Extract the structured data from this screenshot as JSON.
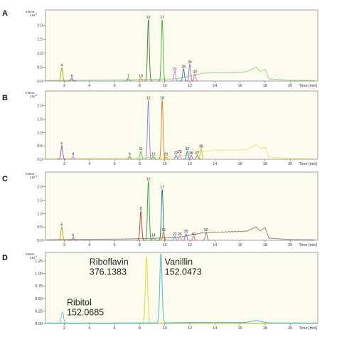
{
  "chart_data": [
    {
      "panel": "A",
      "type": "line",
      "ylabel": "Intens.",
      "yexp": "x10",
      "yexp_sup": "5",
      "xlabel": "Time [min]",
      "xlim": [
        0.5,
        22.2
      ],
      "ylim": [
        0,
        2.55
      ],
      "xticks": [
        "2",
        "4",
        "6",
        "8",
        "10",
        "12",
        "14",
        "16",
        "18",
        "20"
      ],
      "xtick_values": [
        2,
        4,
        6,
        8,
        10,
        12,
        14,
        16,
        18,
        20
      ],
      "yticks": [
        "0.0",
        "0.5",
        "1.0",
        "1.5",
        "2.0"
      ],
      "ytick_values": [
        0,
        0.5,
        1.0,
        1.5,
        2.0
      ],
      "peaks": [
        {
          "label": "4",
          "x": 1.8,
          "y": 0.48,
          "color": "#9aaa00"
        },
        {
          "label": "6",
          "x": 2.6,
          "y": 0.1,
          "color": "#7e4ea8"
        },
        {
          "label": "7",
          "x": 7.1,
          "y": 0.1,
          "color": "#5aa050"
        },
        {
          "label": "10",
          "x": 8.1,
          "y": 0.1,
          "color": "#e59a28"
        },
        {
          "label": "12",
          "x": 8.7,
          "y": 2.2,
          "color": "#3a7d3a"
        },
        {
          "label": "17",
          "x": 9.8,
          "y": 2.2,
          "color": "#3fb02e"
        },
        {
          "label": "22",
          "x": 10.8,
          "y": 0.35,
          "color": "#c27ad6"
        },
        {
          "label": "28",
          "x": 11.5,
          "y": 0.43,
          "color": "#1f77b4"
        },
        {
          "label": "34",
          "x": 12.0,
          "y": 0.6,
          "color": "#9f5fd0"
        },
        {
          "label": "40",
          "x": 12.4,
          "y": 0.25,
          "color": "#ea5e8a"
        }
      ],
      "baseline": [
        [
          0.6,
          0.02
        ],
        [
          2,
          0.03
        ],
        [
          6,
          0.04
        ],
        [
          11,
          0.08
        ],
        [
          13,
          0.28
        ],
        [
          14,
          0.3
        ],
        [
          15,
          0.3
        ],
        [
          16.5,
          0.33
        ],
        [
          17.3,
          0.5
        ],
        [
          17.6,
          0.35
        ],
        [
          18,
          0.42
        ],
        [
          18.3,
          0.08
        ],
        [
          20,
          0.03
        ],
        [
          22,
          0.02
        ]
      ],
      "baseline_color": "#98c98a"
    },
    {
      "panel": "B",
      "type": "line",
      "ylabel": "Intens.",
      "yexp": "x10",
      "yexp_sup": "5",
      "xlabel": "Time [min]",
      "xlim": [
        0.5,
        22.2
      ],
      "ylim": [
        0,
        2.55
      ],
      "xticks": [
        "2",
        "4",
        "6",
        "8",
        "10",
        "12",
        "14",
        "16",
        "18",
        "20"
      ],
      "xtick_values": [
        2,
        4,
        6,
        8,
        10,
        12,
        14,
        16,
        18,
        20
      ],
      "yticks": [
        "0.0",
        "0.5",
        "1.0",
        "1.5",
        "2.0"
      ],
      "ytick_values": [
        0,
        0.5,
        1.0,
        1.5,
        2.0
      ],
      "peaks": [
        {
          "label": "6",
          "x": 1.8,
          "y": 0.5,
          "color": "#8a4fa0"
        },
        {
          "label": "8",
          "x": 2.7,
          "y": 0.1,
          "color": "#c47ad6"
        },
        {
          "label": "9",
          "x": 7.2,
          "y": 0.1,
          "color": "#5aa050"
        },
        {
          "label": "11",
          "x": 8.1,
          "y": 0.3,
          "color": "#58b846"
        },
        {
          "label": "12",
          "x": 8.7,
          "y": 2.2,
          "color": "#8f86c8"
        },
        {
          "label": "15",
          "x": 9.1,
          "y": 0.1,
          "color": "#4a9e5c"
        },
        {
          "label": "18",
          "x": 9.8,
          "y": 2.2,
          "color": "#e07a20"
        },
        {
          "label": "20",
          "x": 10.1,
          "y": 0.1,
          "color": "#c7b31a"
        },
        {
          "label": "22",
          "x": 10.9,
          "y": 0.15,
          "color": "#4e9ac7"
        },
        {
          "label": "25",
          "x": 11.2,
          "y": 0.2,
          "color": "#d685b8"
        },
        {
          "label": "32",
          "x": 11.8,
          "y": 0.3,
          "color": "#1f77b4"
        },
        {
          "label": "36",
          "x": 12.1,
          "y": 0.15,
          "color": "#9f5fd0"
        },
        {
          "label": "38",
          "x": 12.9,
          "y": 0.4,
          "color": "#bfc500"
        },
        {
          "label": "37",
          "x": 12.6,
          "y": 0.15,
          "color": "#7a7a7a"
        }
      ],
      "baseline": [
        [
          0.6,
          0.02
        ],
        [
          2,
          0.03
        ],
        [
          6,
          0.04
        ],
        [
          11,
          0.08
        ],
        [
          13,
          0.3
        ],
        [
          14,
          0.33
        ],
        [
          16.5,
          0.35
        ],
        [
          17.3,
          0.55
        ],
        [
          17.6,
          0.4
        ],
        [
          18,
          0.45
        ],
        [
          18.3,
          0.08
        ],
        [
          20,
          0.03
        ],
        [
          22,
          0.02
        ]
      ],
      "baseline_color": "#eee27a"
    },
    {
      "panel": "C",
      "type": "line",
      "ylabel": "Intens.",
      "yexp": "x10",
      "yexp_sup": "5",
      "xlabel": "Time [min]",
      "xlim": [
        0.5,
        22.2
      ],
      "ylim": [
        0,
        2.55
      ],
      "xticks": [
        "2",
        "4",
        "6",
        "8",
        "10",
        "12",
        "14",
        "16",
        "18",
        "20"
      ],
      "xtick_values": [
        2,
        4,
        6,
        8,
        10,
        12,
        14,
        16,
        18,
        20
      ],
      "yticks": [
        "0.0",
        "0.5",
        "1.0",
        "1.5",
        "2.0"
      ],
      "ytick_values": [
        0,
        0.5,
        1.0,
        1.5,
        2.0
      ],
      "peaks": [
        {
          "label": "5",
          "x": 1.8,
          "y": 0.5,
          "color": "#b5a200"
        },
        {
          "label": "6",
          "x": 2.7,
          "y": 0.1,
          "color": "#8a4fa0"
        },
        {
          "label": "8",
          "x": 8.1,
          "y": 1.1,
          "color": "#c0392b"
        },
        {
          "label": "12",
          "x": 8.7,
          "y": 2.2,
          "color": "#3a9d3a"
        },
        {
          "label": "14",
          "x": 9.1,
          "y": 0.1,
          "color": "#4a9e5c"
        },
        {
          "label": "17",
          "x": 9.8,
          "y": 1.9,
          "color": "#1f6e7a"
        },
        {
          "label": "19",
          "x": 9.9,
          "y": 0.3,
          "color": "#e07a20"
        },
        {
          "label": "22",
          "x": 10.8,
          "y": 0.15,
          "color": "#4e9ac7"
        },
        {
          "label": "26",
          "x": 11.2,
          "y": 0.15,
          "color": "#d685b8"
        },
        {
          "label": "30",
          "x": 11.7,
          "y": 0.25,
          "color": "#9f5fd0"
        },
        {
          "label": "40",
          "x": 12.3,
          "y": 0.15,
          "color": "#ea5e8a"
        },
        {
          "label": "50",
          "x": 13.3,
          "y": 0.3,
          "color": "#7a7a7a"
        }
      ],
      "baseline": [
        [
          0.6,
          0.02
        ],
        [
          2,
          0.03
        ],
        [
          7,
          0.05
        ],
        [
          11,
          0.1
        ],
        [
          13,
          0.28
        ],
        [
          14,
          0.3
        ],
        [
          16.5,
          0.34
        ],
        [
          17.3,
          0.5
        ],
        [
          17.6,
          0.35
        ],
        [
          18,
          0.48
        ],
        [
          18.3,
          0.08
        ],
        [
          20,
          0.03
        ],
        [
          22,
          0.02
        ]
      ],
      "baseline_color": "#8a7e76"
    },
    {
      "panel": "D",
      "type": "line",
      "ylabel": "Intens.",
      "yexp": "x10",
      "yexp_sup": "5",
      "xlabel": "Time [min]",
      "xlim": [
        0.5,
        22.2
      ],
      "ylim": [
        0,
        1.42
      ],
      "xticks": [
        "2",
        "4",
        "6",
        "8",
        "10",
        "12",
        "14",
        "16",
        "18",
        "20"
      ],
      "xtick_values": [
        2,
        4,
        6,
        8,
        10,
        12,
        14,
        16,
        18,
        20
      ],
      "yticks": [
        "0.00",
        "0.25",
        "0.50",
        "0.75",
        "1.00",
        "1.25"
      ],
      "ytick_values": [
        0,
        0.25,
        0.5,
        0.75,
        1.0,
        1.25
      ],
      "series": [
        {
          "peak_x": 1.85,
          "peak_y": 0.22,
          "color": "#7ecfd8"
        },
        {
          "peak_x": 8.55,
          "peak_y": 1.32,
          "color": "#e6de3a"
        },
        {
          "peak_x": 9.7,
          "peak_y": 1.38,
          "color": "#5bc3c8"
        }
      ],
      "annotations": [
        {
          "name": "Ribitol",
          "mz": "152.0685",
          "x": 2.2,
          "y": 0.36
        },
        {
          "name": "Riboflavin",
          "mz": "376.1383",
          "x": 4.0,
          "y": 1.17
        },
        {
          "name": "Vanillin",
          "mz": "152.0473",
          "x": 10.0,
          "y": 1.17
        }
      ]
    }
  ]
}
